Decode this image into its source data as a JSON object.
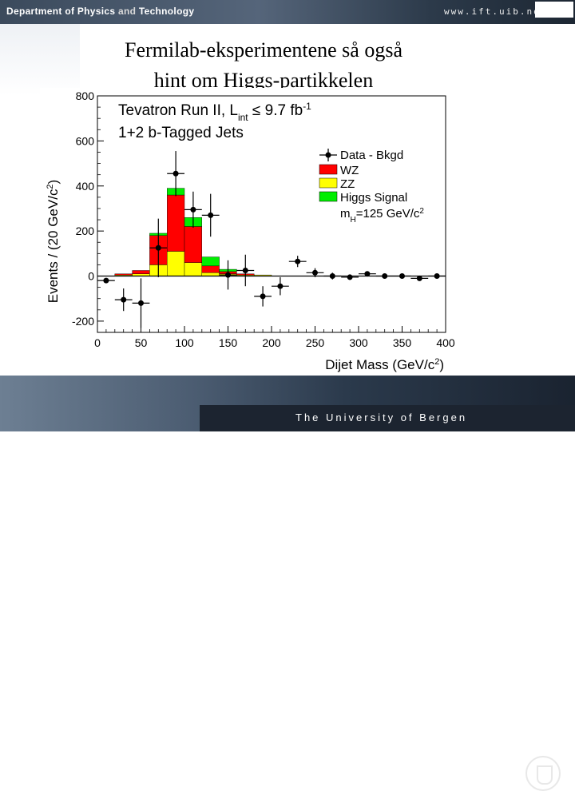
{
  "header": {
    "dept_part1": "Department of Physics",
    "dept_part2": "and",
    "dept_part3": "Technology",
    "url": "www.ift.uib.no"
  },
  "slide": {
    "title_line1": "Fermilab-eksperimentene så også",
    "title_line2": "hint om Higgs-partikkelen"
  },
  "footer": {
    "university": "The University of Bergen"
  },
  "chart_data": {
    "type": "bar",
    "title_line1": "Tevatron Run II, L",
    "title_sub": "int",
    "title_rest": " ≤ 9.7 fb",
    "title_sup": "-1",
    "subtitle": "1+2 b-Tagged Jets",
    "xlabel": "Dijet Mass (GeV/c",
    "xlabel_sup": "2",
    "xlabel_end": ")",
    "ylabel": "Events / (20 GeV/c",
    "ylabel_sup": "2",
    "ylabel_end": ")",
    "xlim": [
      0,
      400
    ],
    "ylim": [
      -250,
      800
    ],
    "xticks": [
      0,
      50,
      100,
      150,
      200,
      250,
      300,
      350,
      400
    ],
    "xtick_labels": [
      "0",
      "50",
      "100",
      "150",
      "200",
      "250",
      "300",
      "350",
      "400"
    ],
    "yticks": [
      -200,
      0,
      200,
      400,
      600,
      800
    ],
    "ytick_labels": [
      "-200",
      "0",
      "200",
      "400",
      "600",
      "800"
    ],
    "bin_width": 20,
    "bins": [
      {
        "x0": 20,
        "zz": 5,
        "wz": 5,
        "higgs": 0
      },
      {
        "x0": 40,
        "zz": 10,
        "wz": 15,
        "higgs": 0
      },
      {
        "x0": 60,
        "zz": 50,
        "wz": 130,
        "higgs": 10
      },
      {
        "x0": 80,
        "zz": 110,
        "wz": 250,
        "higgs": 30
      },
      {
        "x0": 100,
        "zz": 60,
        "wz": 160,
        "higgs": 40
      },
      {
        "x0": 120,
        "zz": 15,
        "wz": 30,
        "higgs": 40
      },
      {
        "x0": 140,
        "zz": 10,
        "wz": 10,
        "higgs": 10
      },
      {
        "x0": 160,
        "zz": 5,
        "wz": 5,
        "higgs": 0
      },
      {
        "x0": 180,
        "zz": 5,
        "wz": 0,
        "higgs": 0
      }
    ],
    "data_points": [
      {
        "x": 10,
        "y": -20,
        "err": 10
      },
      {
        "x": 30,
        "y": -105,
        "err": 50
      },
      {
        "x": 50,
        "y": -120,
        "err": 110
      },
      {
        "x": 70,
        "y": 125,
        "err": 130
      },
      {
        "x": 90,
        "y": 455,
        "err": 100
      },
      {
        "x": 110,
        "y": 295,
        "err": 80
      },
      {
        "x": 130,
        "y": 270,
        "err": 95
      },
      {
        "x": 150,
        "y": 5,
        "err": 65
      },
      {
        "x": 170,
        "y": 25,
        "err": 70
      },
      {
        "x": 190,
        "y": -90,
        "err": 45
      },
      {
        "x": 210,
        "y": -45,
        "err": 40
      },
      {
        "x": 230,
        "y": 65,
        "err": 25
      },
      {
        "x": 250,
        "y": 15,
        "err": 20
      },
      {
        "x": 270,
        "y": 0,
        "err": 15
      },
      {
        "x": 290,
        "y": -5,
        "err": 12
      },
      {
        "x": 310,
        "y": 10,
        "err": 10
      },
      {
        "x": 330,
        "y": 0,
        "err": 8
      },
      {
        "x": 350,
        "y": 0,
        "err": 6
      },
      {
        "x": 370,
        "y": -10,
        "err": 5
      },
      {
        "x": 390,
        "y": 0,
        "err": 5
      }
    ],
    "legend": {
      "data": "Data - Bkgd",
      "wz": "WZ",
      "zz": "ZZ",
      "higgs": "Higgs Signal",
      "mass_prefix": "m",
      "mass_sub": "H",
      "mass_text": "=125 GeV/c",
      "mass_sup": "2"
    },
    "legend_placement": "top-right",
    "grid": false,
    "colors": {
      "wz": "#ff0000",
      "zz": "#ffff00",
      "higgs": "#00ee00",
      "data": "#000000"
    }
  }
}
